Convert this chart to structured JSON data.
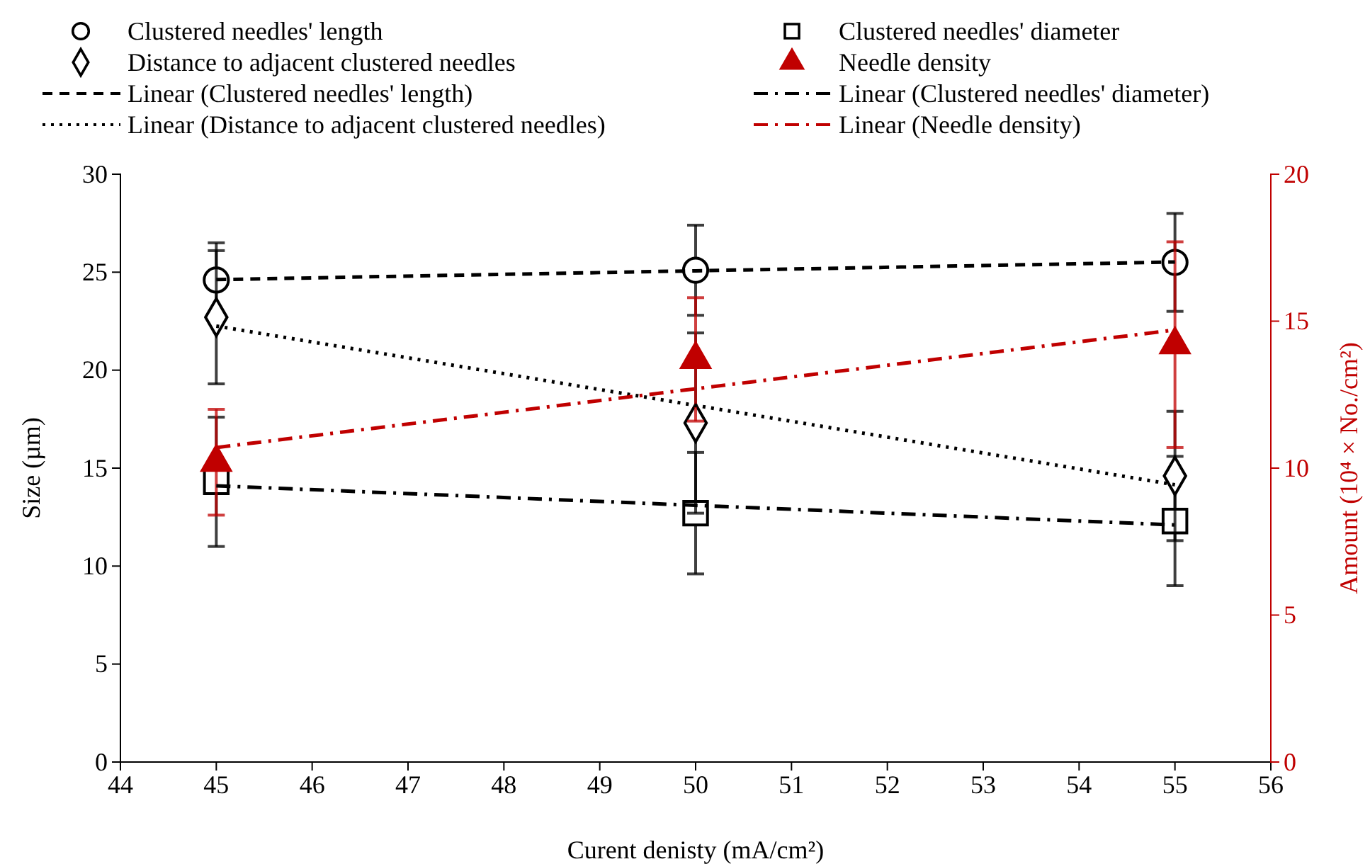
{
  "chart_data": {
    "type": "scatter",
    "xlabel": "Curent denisty (mA/cm²)",
    "ylabel": "Size (µm)",
    "y2label": "Amount (10⁴ × No./cm²)",
    "x": [
      45,
      50,
      55
    ],
    "xlim": [
      44,
      56
    ],
    "xticks": [
      44,
      45,
      46,
      47,
      48,
      49,
      50,
      51,
      52,
      53,
      54,
      55,
      56
    ],
    "ylim": [
      0,
      30
    ],
    "yticks": [
      0,
      5,
      10,
      15,
      20,
      25,
      30
    ],
    "y2lim": [
      0,
      20
    ],
    "y2ticks": [
      0,
      5,
      10,
      15,
      20
    ],
    "legend": "top",
    "grid": false,
    "series": [
      {
        "name": "Clustered needles' length",
        "marker": "circle",
        "color": "#000000",
        "values": [
          24.6,
          25.1,
          25.5
        ],
        "errors": [
          1.9,
          2.3,
          2.5
        ]
      },
      {
        "name": "Clustered needles' diameter",
        "marker": "square",
        "color": "#000000",
        "values": [
          14.3,
          12.7,
          12.3
        ],
        "errors": [
          3.3,
          3.1,
          3.3
        ]
      },
      {
        "name": "Distance to adjacent clustered needles",
        "marker": "diamond",
        "color": "#000000",
        "values": [
          22.7,
          17.3,
          14.6
        ],
        "errors": [
          3.4,
          4.6,
          3.3
        ]
      },
      {
        "name": "Needle density",
        "marker": "triangle",
        "color": "#c00000",
        "axis": "y2",
        "values": [
          10.2,
          13.7,
          14.2
        ],
        "errors": [
          1.8,
          2.1,
          3.5
        ]
      },
      {
        "name": "Linear (Clustered needles' length)",
        "type": "line",
        "line_style": "dashed",
        "color": "#000000",
        "values": [
          24.62,
          25.07,
          25.52
        ]
      },
      {
        "name": "Linear (Clustered needles' diameter)",
        "type": "line",
        "line_style": "dashdot",
        "color": "#000000",
        "values": [
          14.1,
          13.1,
          12.1
        ]
      },
      {
        "name": "Linear (Distance to adjacent clustered needles)",
        "type": "line",
        "line_style": "dotted",
        "color": "#000000",
        "values": [
          22.25,
          18.2,
          14.15
        ]
      },
      {
        "name": "Linear (Needle density)",
        "type": "line",
        "line_style": "dashdot",
        "color": "#c00000",
        "axis": "y2",
        "values": [
          10.7,
          12.7,
          14.7
        ]
      }
    ]
  }
}
